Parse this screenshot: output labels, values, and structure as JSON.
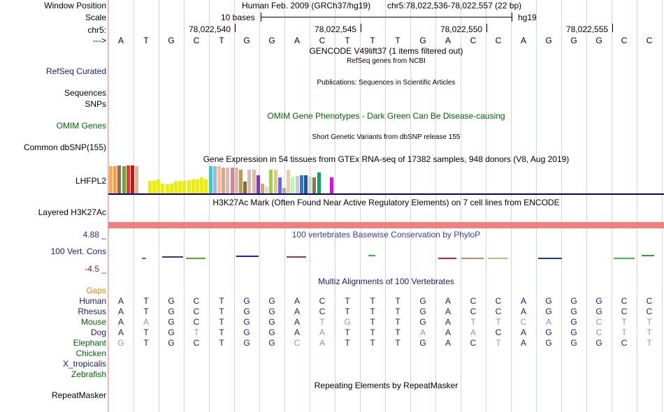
{
  "header": {
    "window_position_label": "Window Position",
    "scale_label": "Scale",
    "chrom_label": "chr5:",
    "strand_label": "--->",
    "assembly": "Human Feb. 2009 (GRCh37/hg19)",
    "position": "chr5:78,022,536-78,022,557 (22 bp)",
    "scale_text": "10 bases",
    "scale_db": "hg19",
    "coords": [
      "78,022,540",
      "78,022,545",
      "78,022,550",
      "78,022,555"
    ]
  },
  "reference": [
    "A",
    "T",
    "G",
    "C",
    "T",
    "G",
    "G",
    "A",
    "C",
    "T",
    "T",
    "T",
    "G",
    "A",
    "C",
    "C",
    "A",
    "G",
    "G",
    "G",
    "C",
    "C"
  ],
  "tracks": {
    "gencode": {
      "title": "GENCODE V49lift37 (1 items filtered out)"
    },
    "refseq": {
      "subtitle": "RefSeq genes from NCBI",
      "label": "RefSeq Curated"
    },
    "publications": {
      "subtitle": "Publications: Sequences in Scientific Articles",
      "label": "Sequences"
    },
    "snps_label": "SNPs",
    "omim": {
      "title": "OMIM Gene Phenotypes - Dark Green Can Be Disease-causing",
      "label": "OMIM Genes",
      "color": "#006400"
    },
    "dbsnp": {
      "subtitle": "Short Genetic Variants from dbSNP release 155",
      "label": "Common dbSNP(155)"
    },
    "gtex": {
      "title": "Gene Expression in 54 tissues from GTEx RNA-seq of 17382 samples, 948 donors (V8, Aug 2019)",
      "label": "LHFPL2",
      "values": [
        0.97,
        0.97,
        1.0,
        0.97,
        1.0,
        1.0,
        0.97,
        0.97,
        0.97,
        0.44,
        0.44,
        0.5,
        0.36,
        0.32,
        0.36,
        0.42,
        0.46,
        0.46,
        0.48,
        0.5,
        0.5,
        0.57,
        0.5,
        0.97,
        0.97,
        0.97,
        0.92,
        0.92,
        0.92,
        0.92,
        0.84,
        0.42,
        0.84,
        0.84,
        0.65,
        0.36,
        0.26,
        0.84,
        0.84,
        0.58,
        0.2,
        0.84,
        0.58,
        0.62,
        0.64,
        0.64,
        0.6,
        0.58,
        0.76,
        0.64,
        0.72,
        0.58,
        0.5,
        0.34
      ],
      "colors": [
        "#ffaa55",
        "#ff9944",
        "#8b7355",
        "#66aa33",
        "#ee3333",
        "#cc1111",
        "#ddb595",
        "#ffffff",
        "#ffffff",
        "#eeee00",
        "#eeee00",
        "#eeee00",
        "#eeee00",
        "#eeee00",
        "#eeee00",
        "#eeee00",
        "#eeee00",
        "#eeee00",
        "#eeee00",
        "#eeee00",
        "#eeee00",
        "#eeee00",
        "#eeee00",
        "#33cccc",
        "#99bbdd",
        "#ffbb99",
        "#ccaa99",
        "#ddbbaa",
        "#cc88aa",
        "#ddbbaa",
        "#bb9955",
        "#886644",
        "#ddbbaa",
        "#ddbbaa",
        "#8833cc",
        "#ccaa66",
        "#dddddd",
        "#aacc44",
        "#ddcc88",
        "#6666ff",
        "#aaaaaa",
        "#eeccaa",
        "#aaffaa",
        "#cccccc",
        "#3377cc",
        "#2255aa",
        "#ccddbb",
        "#8b7355",
        "#00aa66",
        "#ffffff",
        "#ffffff",
        "#ee00ee",
        "#ffffff",
        "#ffffff"
      ]
    },
    "h3k27ac": {
      "title": "H3K27Ac Mark (Often Found Near Active Regulatory Elements) on 7 cell lines from ENCODE",
      "label": "Layered H3K27Ac",
      "color": "#f08080"
    },
    "phylop": {
      "title": "100 vertebrates Basewise Conservation by PhyloP",
      "label": "100 Vert. Cons",
      "max_label": "4.88 _",
      "min_label": "-4.5 _",
      "title_color": "#3b3ba0",
      "max_color": "#2b2b80",
      "min_color": "#8b1a1a"
    },
    "multiz": {
      "title": "Multiz Alignments of 100 Vertebrates",
      "gaps_label": "Gaps",
      "gaps_color": "#dd8800",
      "species": [
        {
          "name": "Human",
          "color": "#1a1a70",
          "bases": [
            "A",
            "T",
            "G",
            "C",
            "T",
            "G",
            "G",
            "A",
            "C",
            "T",
            "T",
            "T",
            "G",
            "A",
            "C",
            "C",
            "A",
            "G",
            "G",
            "G",
            "C",
            "C"
          ]
        },
        {
          "name": "Rhesus",
          "color": "#1a1a70",
          "bases": [
            "A",
            "T",
            "G",
            "C",
            "T",
            "G",
            "G",
            "A",
            "C",
            "T",
            "T",
            "T",
            "G",
            "A",
            "C",
            "C",
            "A",
            "G",
            "G",
            "G",
            "C",
            "C"
          ]
        },
        {
          "name": "Mouse",
          "color": "#006400",
          "bases": [
            "A",
            "A",
            "G",
            "C",
            "T",
            "G",
            "G",
            "A",
            "T",
            "G",
            "T",
            "T",
            "G",
            "A",
            "T",
            "T",
            "C",
            "A",
            "G",
            "C",
            "T",
            "T"
          ]
        },
        {
          "name": "Dog",
          "color": "#1a1a70",
          "bases": [
            "A",
            "T",
            "G",
            "T",
            "T",
            "G",
            "G",
            "A",
            "A",
            "T",
            "T",
            "T",
            "A",
            "A",
            "A",
            "C",
            "A",
            "G",
            "G",
            "C",
            "T",
            "T"
          ]
        },
        {
          "name": "Elephant",
          "color": "#006400",
          "bases": [
            "G",
            "T",
            "G",
            "C",
            "T",
            "G",
            "G",
            "C",
            "A",
            "T",
            "T",
            "T",
            "G",
            "A",
            "C",
            "T",
            "A",
            "G",
            "G",
            "G",
            "C",
            "T"
          ]
        },
        {
          "name": "Chicken",
          "color": "#006400",
          "bases": []
        },
        {
          "name": "X_tropicalis",
          "color": "#1a1a70",
          "bases": []
        },
        {
          "name": "Zebrafish",
          "color": "#006400",
          "bases": []
        }
      ]
    },
    "repeatmasker": {
      "title": "Repeating Elements by RepeatMasker",
      "label": "RepeatMasker"
    }
  },
  "colors": {
    "track_label": "#000000",
    "gridline": "#f2cccc",
    "divider": "#000080"
  }
}
